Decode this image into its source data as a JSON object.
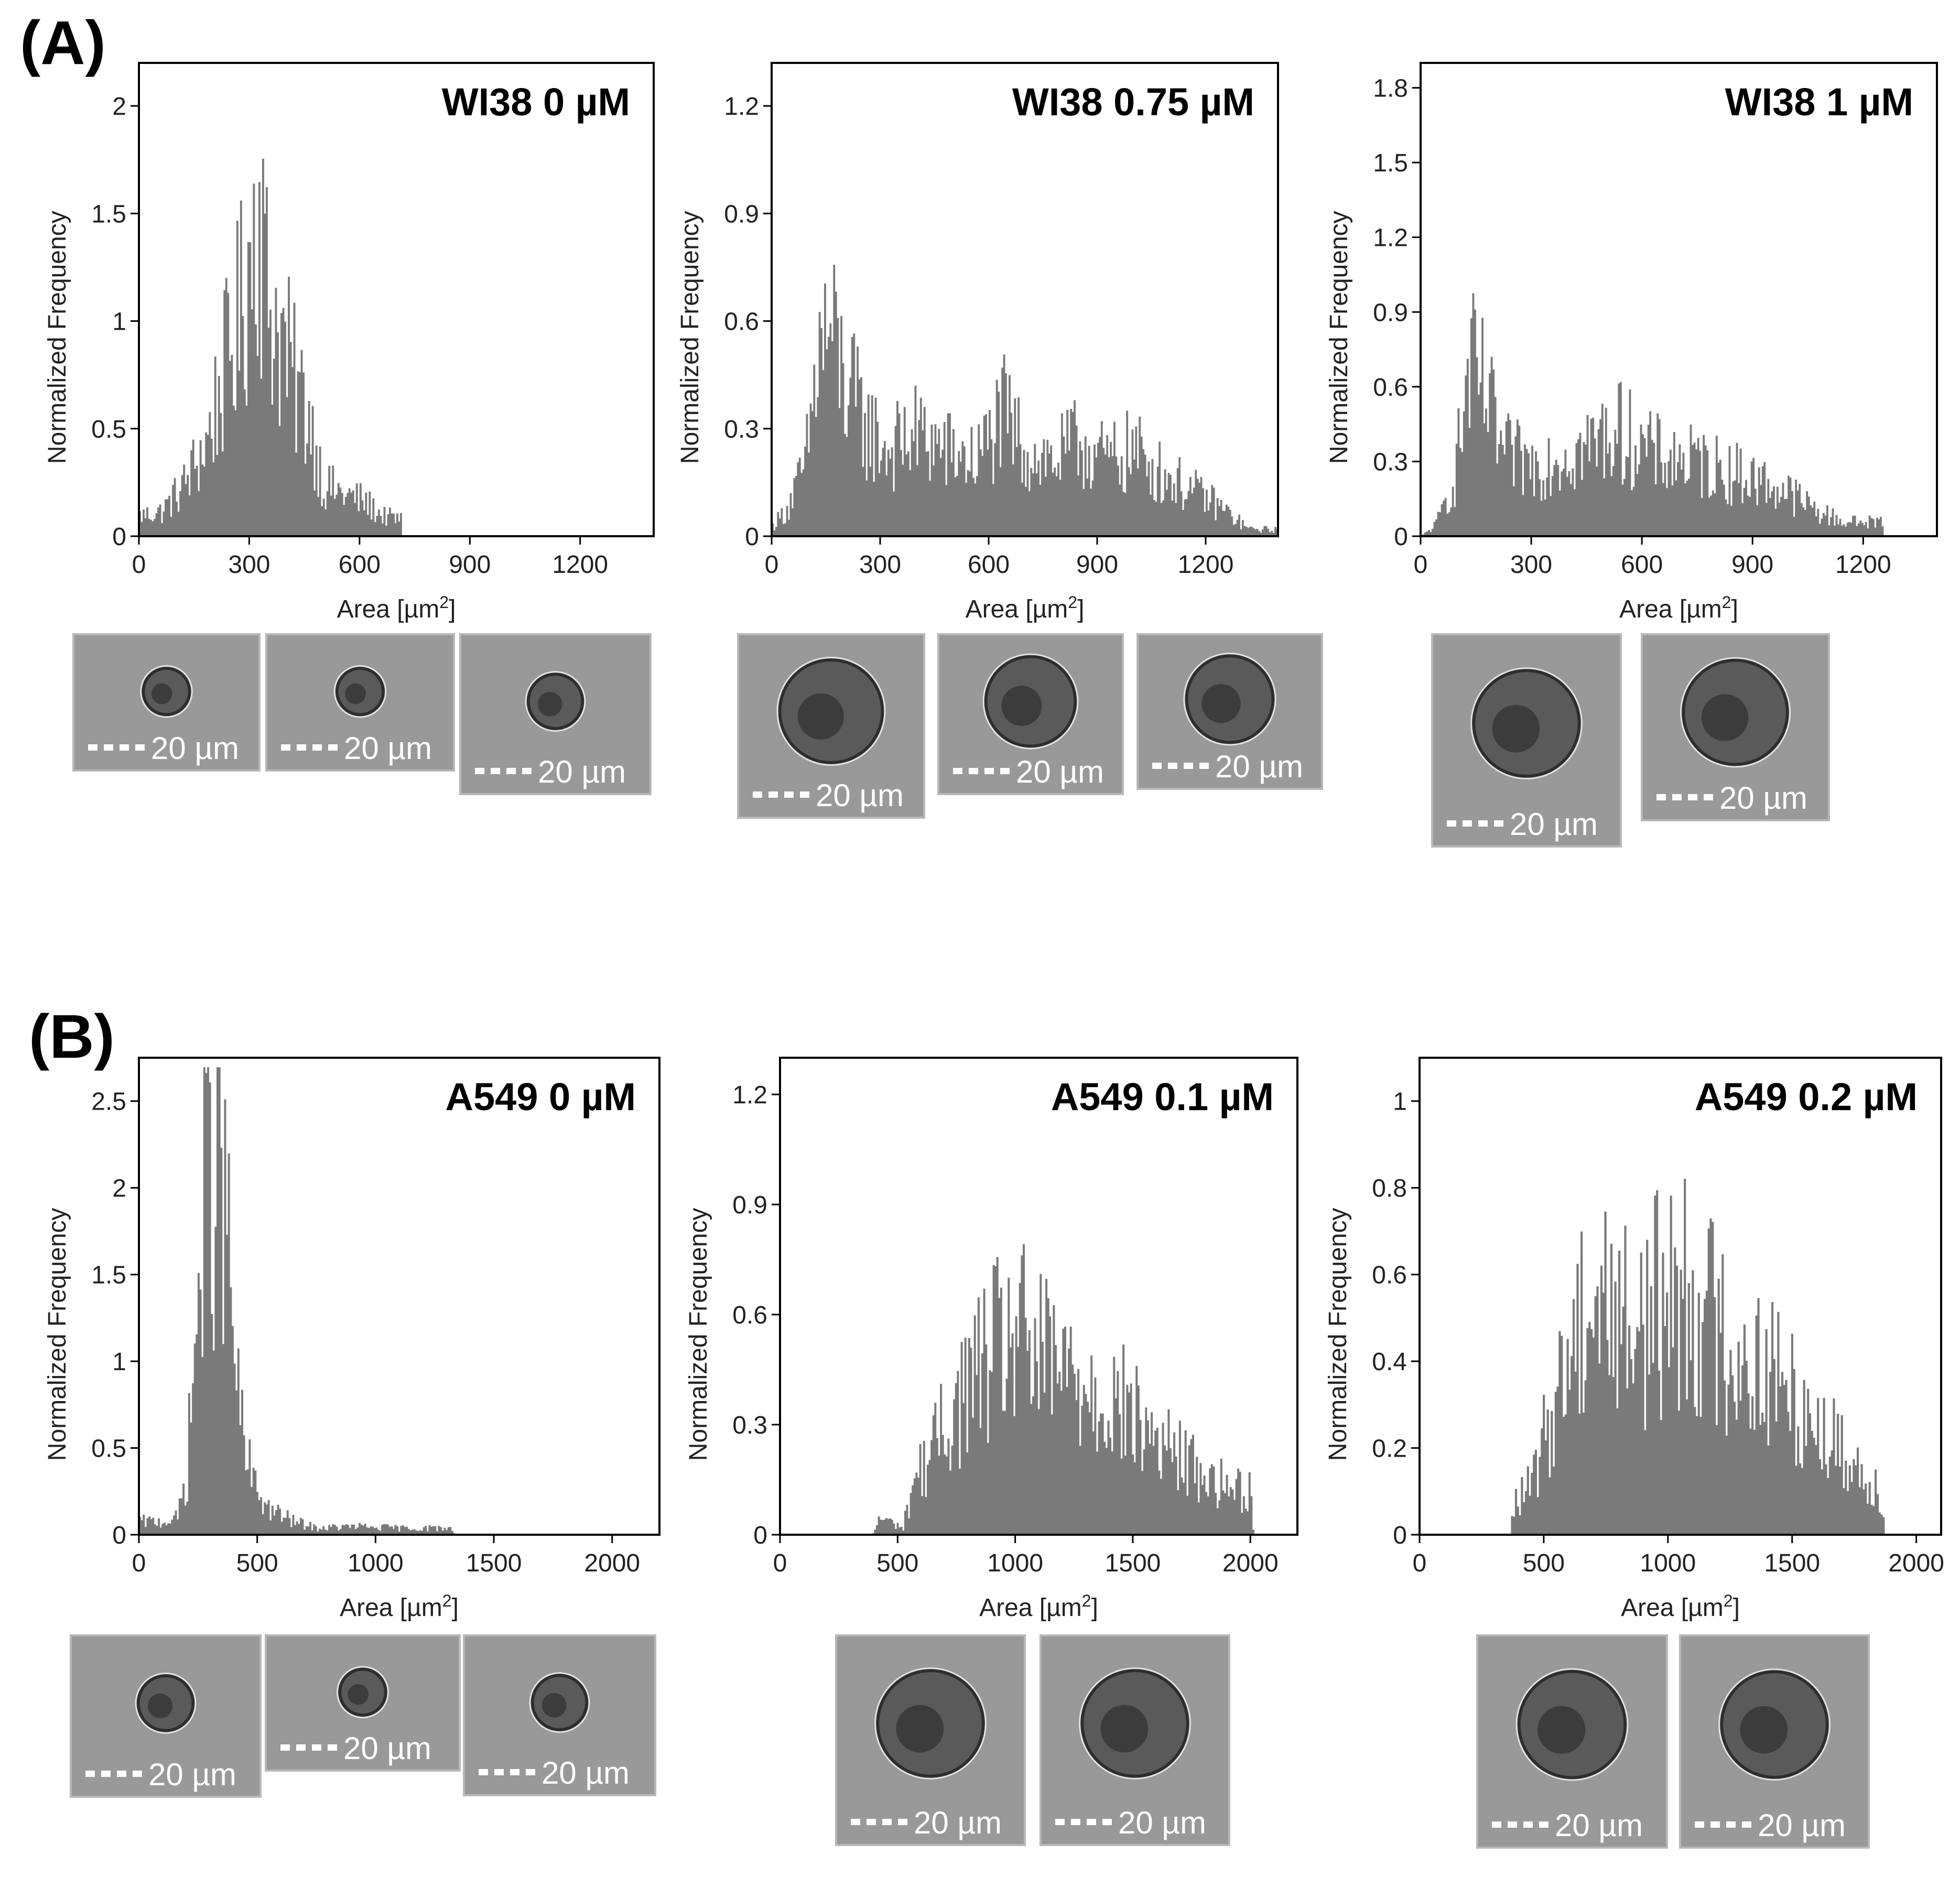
{
  "figure": {
    "panel_labels": [
      "(A)",
      "(B)"
    ],
    "bar_color": "#7a7a7a",
    "micrograph_background": "#999999",
    "scale_bar_label": "20 µm"
  },
  "chart_data": [
    {
      "type": "histogram",
      "title": "WI38 0 µM",
      "xlabel_main": "Area [µm",
      "xlabel_sup": "2",
      "xlabel_end": "]",
      "ylabel": "Normalized Frequency",
      "xlim": [
        0,
        1400
      ],
      "ylim": [
        0,
        2.2
      ],
      "xticks": [
        0,
        300,
        600,
        900,
        1200
      ],
      "yticks": [
        0,
        0.5,
        1,
        1.5,
        2
      ],
      "bin_width": 5,
      "peaks": [
        {
          "x": 0,
          "y": 0.1
        },
        {
          "x": 60,
          "y": 0.12
        },
        {
          "x": 120,
          "y": 0.25
        },
        {
          "x": 180,
          "y": 0.45
        },
        {
          "x": 230,
          "y": 0.8
        },
        {
          "x": 270,
          "y": 1.05
        },
        {
          "x": 300,
          "y": 1.35
        },
        {
          "x": 320,
          "y": 1.75
        },
        {
          "x": 345,
          "y": 1.2
        },
        {
          "x": 380,
          "y": 1.0
        },
        {
          "x": 420,
          "y": 0.75
        },
        {
          "x": 460,
          "y": 0.6
        },
        {
          "x": 500,
          "y": 0.25
        },
        {
          "x": 560,
          "y": 0.2
        },
        {
          "x": 610,
          "y": 0.17
        },
        {
          "x": 660,
          "y": 0.1
        },
        {
          "x": 710,
          "y": 0.08
        },
        {
          "x": 715,
          "y": 0
        },
        {
          "x": 1400,
          "y": 0
        }
      ],
      "micrograph_count": 3
    },
    {
      "type": "histogram",
      "title": "WI38 0.75 µM",
      "xlabel_main": "Area [µm",
      "xlabel_sup": "2",
      "xlabel_end": "]",
      "ylabel": "Normalized Frequency",
      "xlim": [
        0,
        1400
      ],
      "ylim": [
        0,
        1.32
      ],
      "xticks": [
        0,
        300,
        600,
        900,
        1200
      ],
      "yticks": [
        0,
        0.3,
        0.6,
        0.9,
        1.2
      ],
      "bin_width": 5,
      "peaks": [
        {
          "x": 0,
          "y": 0.03
        },
        {
          "x": 40,
          "y": 0.08
        },
        {
          "x": 90,
          "y": 0.2
        },
        {
          "x": 130,
          "y": 0.55
        },
        {
          "x": 160,
          "y": 0.6
        },
        {
          "x": 200,
          "y": 0.45
        },
        {
          "x": 260,
          "y": 0.32
        },
        {
          "x": 320,
          "y": 0.25
        },
        {
          "x": 400,
          "y": 0.3
        },
        {
          "x": 480,
          "y": 0.25
        },
        {
          "x": 560,
          "y": 0.22
        },
        {
          "x": 640,
          "y": 0.35
        },
        {
          "x": 700,
          "y": 0.25
        },
        {
          "x": 780,
          "y": 0.22
        },
        {
          "x": 850,
          "y": 0.28
        },
        {
          "x": 920,
          "y": 0.22
        },
        {
          "x": 1000,
          "y": 0.25
        },
        {
          "x": 1080,
          "y": 0.18
        },
        {
          "x": 1150,
          "y": 0.14
        },
        {
          "x": 1220,
          "y": 0.1
        },
        {
          "x": 1280,
          "y": 0.05
        },
        {
          "x": 1320,
          "y": 0.02
        },
        {
          "x": 1400,
          "y": 0.02
        }
      ],
      "micrograph_count": 3
    },
    {
      "type": "histogram",
      "title": "WI38 1 µM",
      "xlabel_main": "Area [µm",
      "xlabel_sup": "2",
      "xlabel_end": "]",
      "ylabel": "Normalized Frequency",
      "xlim": [
        0,
        1400
      ],
      "ylim": [
        0,
        1.9
      ],
      "xticks": [
        0,
        300,
        600,
        900,
        1200
      ],
      "yticks": [
        0,
        0.3,
        0.6,
        0.9,
        1.2,
        1.5,
        1.8
      ],
      "bin_width": 5,
      "peaks": [
        {
          "x": 0,
          "y": 0
        },
        {
          "x": 40,
          "y": 0.05
        },
        {
          "x": 90,
          "y": 0.25
        },
        {
          "x": 130,
          "y": 0.7
        },
        {
          "x": 170,
          "y": 0.6
        },
        {
          "x": 220,
          "y": 0.35
        },
        {
          "x": 300,
          "y": 0.3
        },
        {
          "x": 380,
          "y": 0.35
        },
        {
          "x": 460,
          "y": 0.38
        },
        {
          "x": 520,
          "y": 0.45
        },
        {
          "x": 560,
          "y": 0.42
        },
        {
          "x": 620,
          "y": 0.35
        },
        {
          "x": 700,
          "y": 0.32
        },
        {
          "x": 780,
          "y": 0.3
        },
        {
          "x": 860,
          "y": 0.26
        },
        {
          "x": 940,
          "y": 0.22
        },
        {
          "x": 1000,
          "y": 0.18
        },
        {
          "x": 1080,
          "y": 0.1
        },
        {
          "x": 1150,
          "y": 0.06
        },
        {
          "x": 1250,
          "y": 0.06
        },
        {
          "x": 1255,
          "y": 0
        },
        {
          "x": 1400,
          "y": 0
        }
      ],
      "micrograph_count": 2
    },
    {
      "type": "histogram",
      "title": "A549 0 µM",
      "xlabel_main": "Area [µm",
      "xlabel_sup": "2",
      "xlabel_end": "]",
      "ylabel": "Normalized Frequency",
      "xlim": [
        0,
        2200
      ],
      "ylim": [
        0,
        2.75
      ],
      "xticks": [
        0,
        500,
        1000,
        1500,
        2000
      ],
      "yticks": [
        0,
        0.5,
        1,
        1.5,
        2,
        2.5
      ],
      "bin_width": 8,
      "peaks": [
        {
          "x": 0,
          "y": 0.08
        },
        {
          "x": 100,
          "y": 0.08
        },
        {
          "x": 160,
          "y": 0.1
        },
        {
          "x": 200,
          "y": 0.4
        },
        {
          "x": 240,
          "y": 1.3
        },
        {
          "x": 280,
          "y": 2.1
        },
        {
          "x": 320,
          "y": 2.4
        },
        {
          "x": 360,
          "y": 2.0
        },
        {
          "x": 390,
          "y": 1.3
        },
        {
          "x": 430,
          "y": 0.6
        },
        {
          "x": 480,
          "y": 0.3
        },
        {
          "x": 550,
          "y": 0.15
        },
        {
          "x": 650,
          "y": 0.08
        },
        {
          "x": 750,
          "y": 0.04
        },
        {
          "x": 900,
          "y": 0.05
        },
        {
          "x": 1100,
          "y": 0.04
        },
        {
          "x": 1320,
          "y": 0.04
        },
        {
          "x": 1330,
          "y": 0
        },
        {
          "x": 2200,
          "y": 0
        }
      ],
      "micrograph_count": 3
    },
    {
      "type": "histogram",
      "title": "A549 0.1 µM",
      "xlabel_main": "Area [µm",
      "xlabel_sup": "2",
      "xlabel_end": "]",
      "ylabel": "Normalized Frequency",
      "xlim": [
        0,
        2200
      ],
      "ylim": [
        0,
        1.3
      ],
      "xticks": [
        0,
        500,
        1000,
        1500,
        2000
      ],
      "yticks": [
        0,
        0.3,
        0.6,
        0.9,
        1.2
      ],
      "bin_width": 8,
      "peaks": [
        {
          "x": 0,
          "y": 0
        },
        {
          "x": 390,
          "y": 0
        },
        {
          "x": 420,
          "y": 0.05
        },
        {
          "x": 520,
          "y": 0.02
        },
        {
          "x": 560,
          "y": 0.15
        },
        {
          "x": 650,
          "y": 0.25
        },
        {
          "x": 750,
          "y": 0.38
        },
        {
          "x": 850,
          "y": 0.48
        },
        {
          "x": 1000,
          "y": 0.58
        },
        {
          "x": 1100,
          "y": 0.5
        },
        {
          "x": 1250,
          "y": 0.45
        },
        {
          "x": 1400,
          "y": 0.4
        },
        {
          "x": 1550,
          "y": 0.3
        },
        {
          "x": 1700,
          "y": 0.22
        },
        {
          "x": 1850,
          "y": 0.15
        },
        {
          "x": 2000,
          "y": 0.12
        },
        {
          "x": 2010,
          "y": 0
        },
        {
          "x": 2200,
          "y": 0
        }
      ],
      "micrograph_count": 2
    },
    {
      "type": "histogram",
      "title": "A549 0.2 µM",
      "xlabel_main": "Area [µm",
      "xlabel_sup": "2",
      "xlabel_end": "]",
      "ylabel": "Normalized Frequency",
      "xlim": [
        0,
        2100
      ],
      "ylim": [
        0,
        1.1
      ],
      "xticks": [
        0,
        500,
        1000,
        1500,
        2000
      ],
      "yticks": [
        0,
        0.2,
        0.4,
        0.6,
        0.8,
        1
      ],
      "bin_width": 8,
      "peaks": [
        {
          "x": 0,
          "y": 0
        },
        {
          "x": 360,
          "y": 0
        },
        {
          "x": 380,
          "y": 0.08
        },
        {
          "x": 450,
          "y": 0.12
        },
        {
          "x": 550,
          "y": 0.35
        },
        {
          "x": 650,
          "y": 0.55
        },
        {
          "x": 750,
          "y": 0.58
        },
        {
          "x": 850,
          "y": 0.5
        },
        {
          "x": 950,
          "y": 0.55
        },
        {
          "x": 1050,
          "y": 0.6
        },
        {
          "x": 1150,
          "y": 0.55
        },
        {
          "x": 1250,
          "y": 0.45
        },
        {
          "x": 1400,
          "y": 0.4
        },
        {
          "x": 1550,
          "y": 0.3
        },
        {
          "x": 1700,
          "y": 0.2
        },
        {
          "x": 1860,
          "y": 0.1
        },
        {
          "x": 1870,
          "y": 0
        },
        {
          "x": 2100,
          "y": 0
        }
      ],
      "micrograph_count": 2
    }
  ]
}
